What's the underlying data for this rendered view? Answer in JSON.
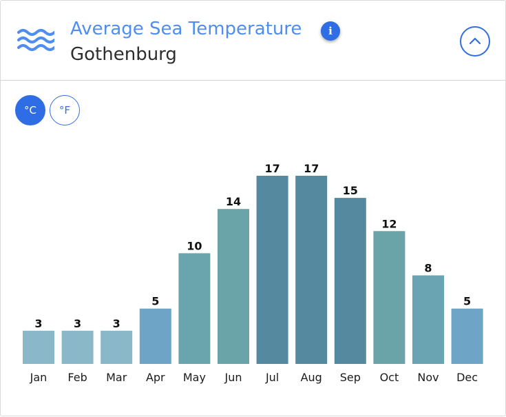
{
  "header": {
    "title": "Average Sea Temperature",
    "subtitle": "Gothenburg",
    "info_icon": "info-icon",
    "collapse_icon": "chevron-up-icon",
    "waves_icon": "waves-icon"
  },
  "units": {
    "celsius_label": "°C",
    "fahrenheit_label": "°F",
    "selected": "°C"
  },
  "colors": {
    "accent": "#2f6de4",
    "title": "#4f8ef0"
  },
  "chart_data": {
    "type": "bar",
    "title": "Average Sea Temperature",
    "xlabel": "",
    "ylabel": "",
    "categories": [
      "Jan",
      "Feb",
      "Mar",
      "Apr",
      "May",
      "Jun",
      "Jul",
      "Aug",
      "Sep",
      "Oct",
      "Nov",
      "Dec"
    ],
    "values": [
      3,
      3,
      3,
      5,
      10,
      14,
      17,
      17,
      15,
      12,
      8,
      5
    ],
    "bar_colors": [
      "#8ab8c9",
      "#8ab8c9",
      "#8ab8c9",
      "#6ea5c6",
      "#6aa4ad",
      "#6aa4a8",
      "#5589a0",
      "#5589a0",
      "#5589a0",
      "#6aa4a8",
      "#6aa4b2",
      "#6ea5c6"
    ],
    "ylim": [
      0,
      17
    ],
    "grid": false,
    "data_labels": true
  }
}
